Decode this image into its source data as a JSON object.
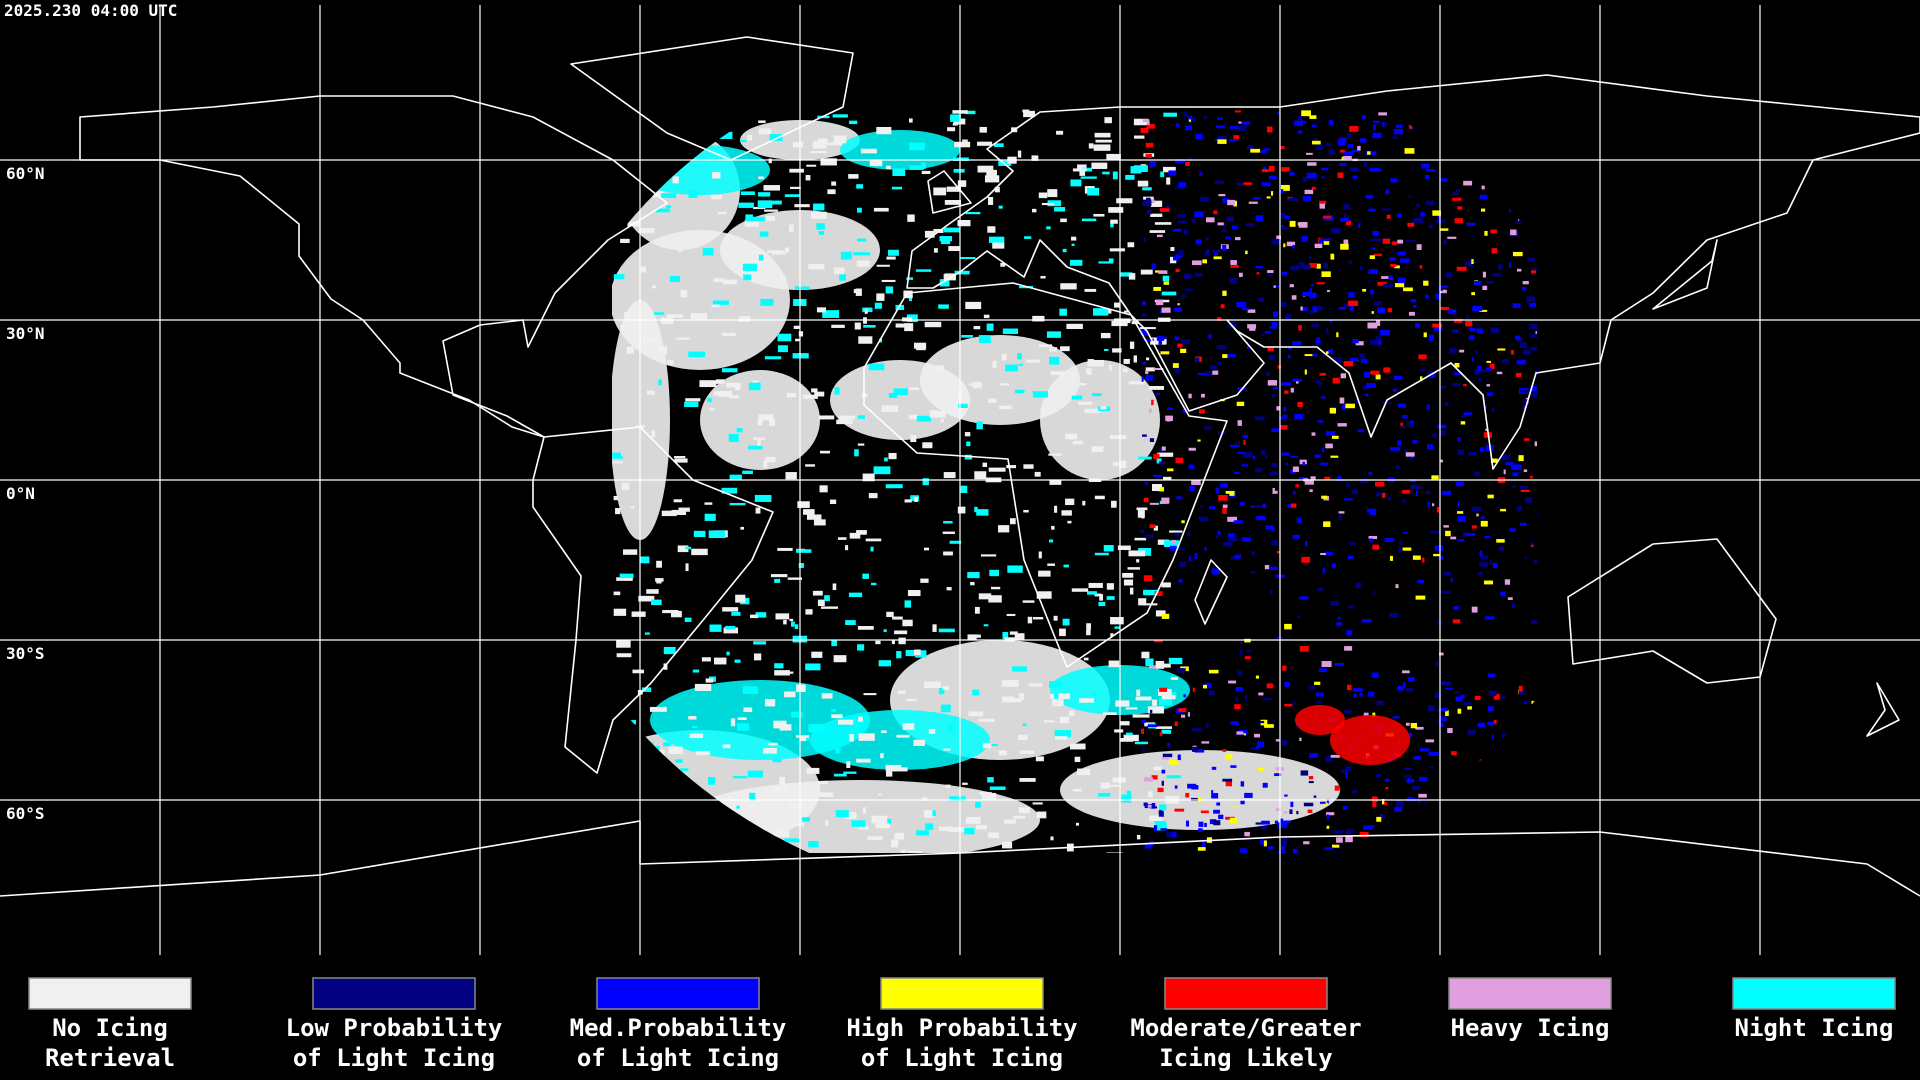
{
  "header": {
    "timestamp": "2025.230 04:00 UTC"
  },
  "map": {
    "latitude_labels": [
      "60°N",
      "30°N",
      "0°N",
      "30°S",
      "60°S"
    ]
  },
  "legend": {
    "items": [
      {
        "color": "#f0f0f0",
        "lines": [
          "No Icing",
          "Retrieval"
        ]
      },
      {
        "color": "#000080",
        "lines": [
          "Low Probability",
          "of Light Icing"
        ]
      },
      {
        "color": "#0000ff",
        "lines": [
          "Med.Probability",
          "of Light Icing"
        ]
      },
      {
        "color": "#ffff00",
        "lines": [
          "High Probability",
          "of Light Icing"
        ]
      },
      {
        "color": "#ff0000",
        "lines": [
          "Moderate/Greater",
          "Icing Likely"
        ]
      },
      {
        "color": "#e0a0e0",
        "lines": [
          "Heavy Icing"
        ]
      },
      {
        "color": "#00ffff",
        "lines": [
          "Night Icing"
        ]
      }
    ]
  }
}
